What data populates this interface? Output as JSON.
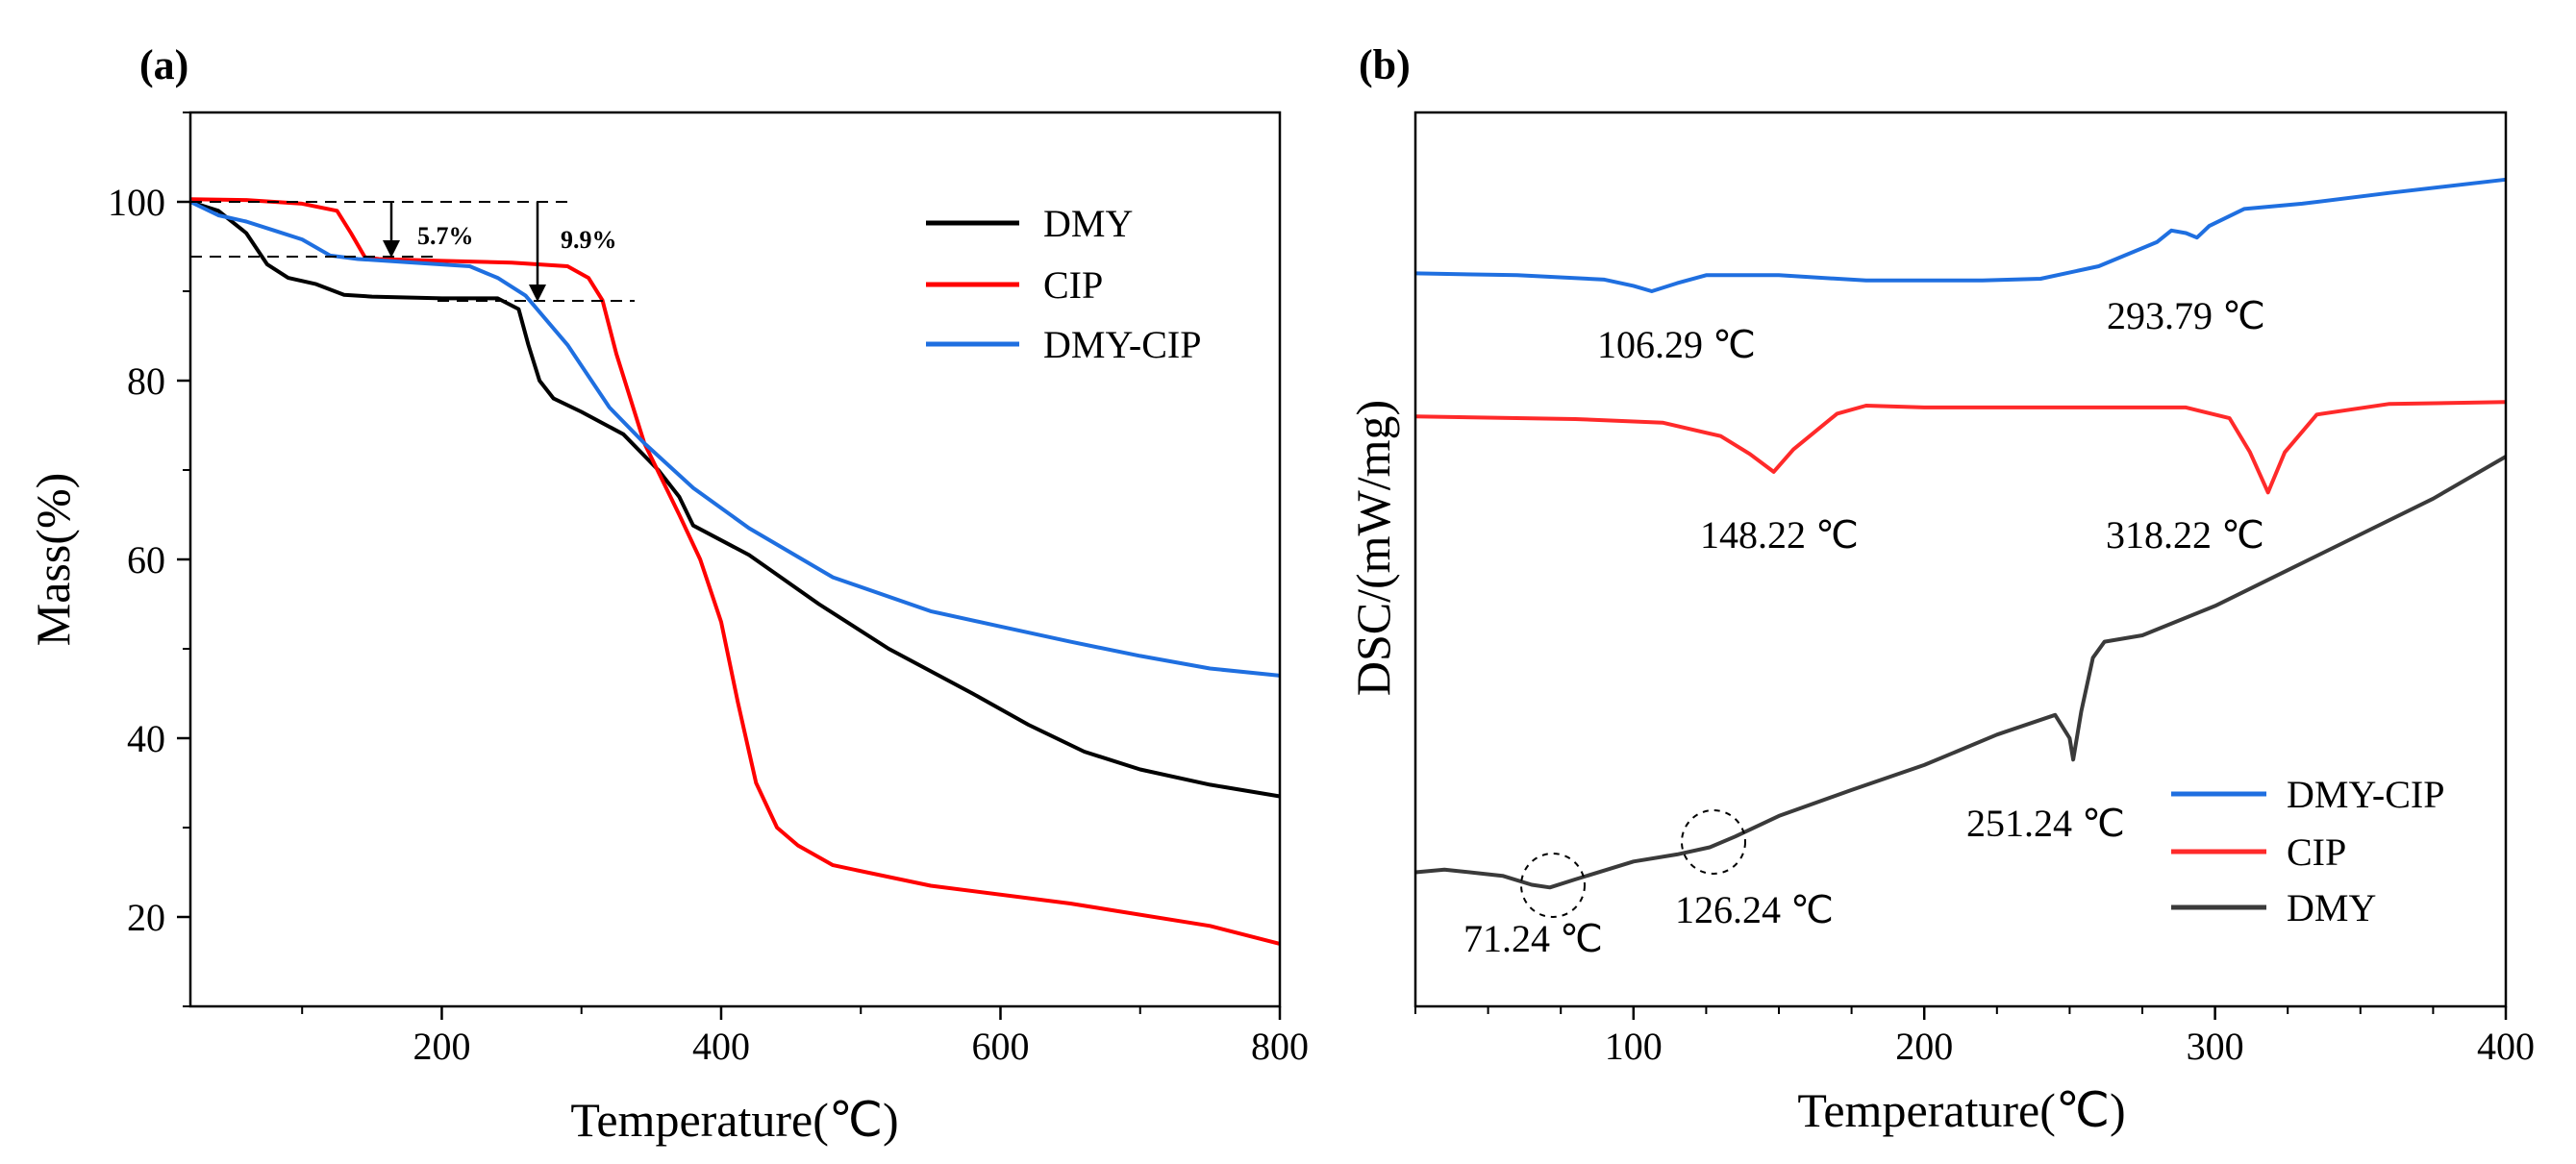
{
  "chart_data": [
    {
      "panel": "(a)",
      "type": "line",
      "xlabel": "Temperature(℃)",
      "ylabel": "Mass(%)",
      "xlim": [
        20,
        800
      ],
      "ylim": [
        10,
        110
      ],
      "xticks": [
        200,
        400,
        600,
        800
      ],
      "yticks": [
        20,
        40,
        60,
        80,
        100
      ],
      "legend_position": "top-right",
      "series": [
        {
          "name": "DMY",
          "color": "#000000",
          "x": [
            20,
            40,
            60,
            75,
            90,
            110,
            130,
            150,
            200,
            240,
            255,
            262,
            270,
            280,
            300,
            330,
            355,
            370,
            380,
            420,
            470,
            520,
            580,
            620,
            660,
            700,
            750,
            800
          ],
          "y": [
            100,
            99,
            96.5,
            93,
            91.5,
            90.8,
            89.6,
            89.4,
            89.2,
            89.2,
            88,
            84,
            80,
            78,
            76.5,
            74,
            70,
            67,
            63.8,
            60.5,
            55,
            50,
            45,
            41.5,
            38.5,
            36.5,
            34.8,
            33.5
          ]
        },
        {
          "name": "CIP",
          "color": "#ff0000",
          "x": [
            20,
            60,
            100,
            125,
            135,
            145,
            155,
            200,
            250,
            290,
            305,
            315,
            325,
            345,
            370,
            385,
            400,
            412,
            425,
            440,
            455,
            480,
            550,
            650,
            750,
            800
          ],
          "y": [
            100.3,
            100.2,
            99.8,
            99,
            96.5,
            93.8,
            93.6,
            93.4,
            93.2,
            92.8,
            91.5,
            89,
            83,
            73,
            65,
            60,
            53,
            44,
            35,
            30,
            28,
            25.8,
            23.5,
            21.5,
            19,
            17
          ]
        },
        {
          "name": "DMY-CIP",
          "color": "#1f6fe0",
          "x": [
            20,
            40,
            60,
            80,
            100,
            120,
            140,
            180,
            220,
            240,
            260,
            290,
            320,
            345,
            380,
            420,
            480,
            550,
            600,
            650,
            700,
            750,
            800
          ],
          "y": [
            100,
            98.5,
            97.8,
            96.8,
            95.8,
            94,
            93.6,
            93.2,
            92.8,
            91.5,
            89.5,
            84,
            77,
            73,
            68,
            63.5,
            58,
            54.2,
            52.5,
            50.8,
            49.2,
            47.8,
            47
          ]
        }
      ],
      "annotations": [
        {
          "text": "5.7%"
        },
        {
          "text": "9.9%"
        }
      ]
    },
    {
      "panel": "(b)",
      "type": "line",
      "xlabel": "Temperature(℃)",
      "ylabel": "DSC/(mW/mg)",
      "xlim": [
        25,
        400
      ],
      "ylim": [
        0,
        100
      ],
      "xticks": [
        100,
        200,
        300,
        400
      ],
      "yticks": [],
      "legend_position": "bottom-right",
      "series": [
        {
          "name": "DMY-CIP",
          "color": "#1f6fe0",
          "x": [
            25,
            60,
            90,
            100,
            106.29,
            115,
            125,
            150,
            180,
            220,
            240,
            260,
            280,
            285,
            290,
            293.79,
            298,
            310,
            330,
            360,
            400
          ],
          "y": [
            82.0,
            81.8,
            81.3,
            80.6,
            80.0,
            80.9,
            81.8,
            81.8,
            81.2,
            81.2,
            81.4,
            82.8,
            85.5,
            86.8,
            86.5,
            86.0,
            87.3,
            89.2,
            89.8,
            91.0,
            92.5
          ]
        },
        {
          "name": "CIP",
          "color": "#ff2a2a",
          "x": [
            25,
            80,
            110,
            130,
            140,
            148.22,
            155,
            170,
            180,
            200,
            250,
            290,
            305,
            312,
            318.22,
            324,
            335,
            360,
            400
          ],
          "y": [
            66.0,
            65.7,
            65.3,
            63.8,
            61.8,
            59.8,
            62.3,
            66.3,
            67.2,
            67.0,
            67.0,
            67.0,
            65.8,
            62.0,
            57.5,
            62.0,
            66.2,
            67.4,
            67.6
          ]
        },
        {
          "name": "DMY",
          "color": "#3a3a3a",
          "x": [
            25,
            35,
            55,
            65,
            71.24,
            80,
            100,
            115,
            126.24,
            135,
            150,
            175,
            200,
            225,
            245,
            250,
            251.24,
            254,
            258,
            262,
            275,
            300,
            325,
            350,
            375,
            400
          ],
          "y": [
            15.0,
            15.3,
            14.6,
            13.6,
            13.3,
            14.2,
            16.2,
            17.0,
            17.8,
            19.0,
            21.3,
            24.2,
            27.0,
            30.4,
            32.6,
            30.0,
            27.6,
            33.0,
            39.0,
            40.8,
            41.5,
            44.8,
            48.8,
            52.8,
            56.8,
            61.5
          ]
        }
      ],
      "annotations": [
        {
          "text": "106.29 ℃"
        },
        {
          "text": "293.79 ℃"
        },
        {
          "text": "148.22 ℃"
        },
        {
          "text": "318.22 ℃"
        },
        {
          "text": "71.24 ℃"
        },
        {
          "text": "126.24 ℃"
        },
        {
          "text": "251.24 ℃"
        }
      ]
    }
  ]
}
